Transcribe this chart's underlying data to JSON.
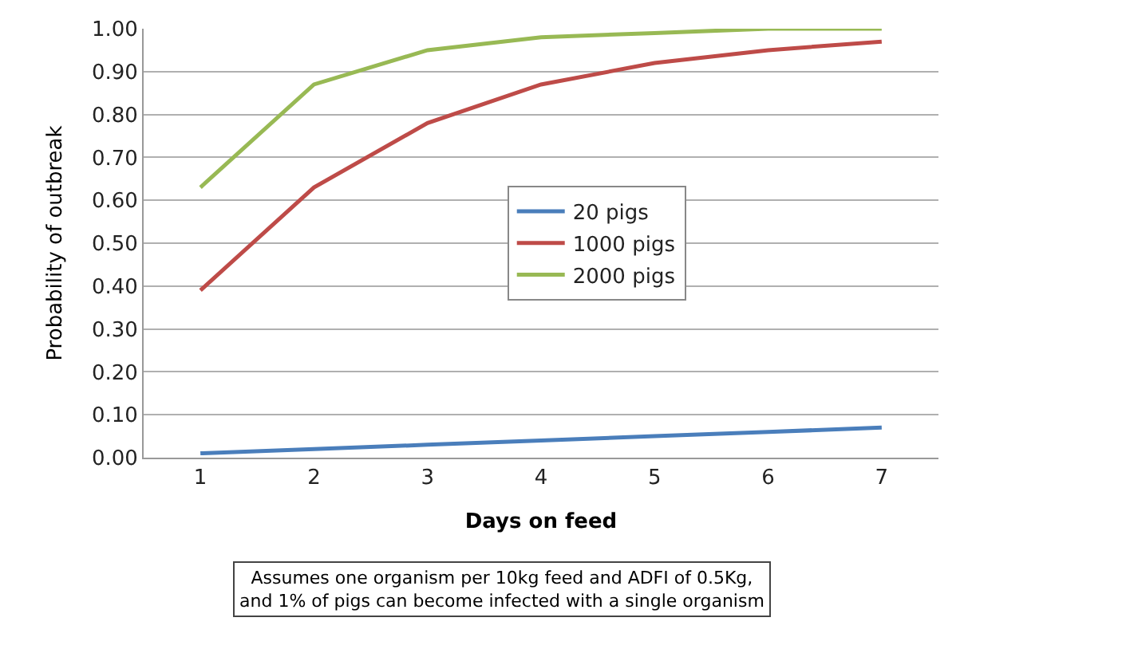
{
  "chart_data": {
    "type": "line",
    "xlabel": "Days on feed",
    "ylabel": "Probability of outbreak",
    "categories": [
      "1",
      "2",
      "3",
      "4",
      "5",
      "6",
      "7"
    ],
    "series": [
      {
        "name": "20 pigs",
        "color": "#4a7ebb",
        "values": [
          0.01,
          0.02,
          0.03,
          0.04,
          0.05,
          0.06,
          0.07
        ]
      },
      {
        "name": "1000 pigs",
        "color": "#be4b48",
        "values": [
          0.39,
          0.63,
          0.78,
          0.87,
          0.92,
          0.95,
          0.97
        ]
      },
      {
        "name": "2000 pigs",
        "color": "#98b954",
        "values": [
          0.63,
          0.87,
          0.95,
          0.98,
          0.99,
          1.0,
          1.0
        ]
      }
    ],
    "ylim": [
      0,
      1
    ],
    "yticks": [
      {
        "value": 0,
        "label": "0.00"
      },
      {
        "value": 0.1,
        "label": "0.10"
      },
      {
        "value": 0.2,
        "label": "0.20"
      },
      {
        "value": 0.3,
        "label": "0.30"
      },
      {
        "value": 0.4,
        "label": "0.40"
      },
      {
        "value": 0.5,
        "label": "0.50"
      },
      {
        "value": 0.6,
        "label": "0.60"
      },
      {
        "value": 0.7,
        "label": "0.70"
      },
      {
        "value": 0.8,
        "label": "0.80"
      },
      {
        "value": 0.9,
        "label": "0.90"
      },
      {
        "value": 1,
        "label": "1.00"
      }
    ],
    "grid": "y",
    "legend": "center",
    "marker": "none",
    "line_style": "solid",
    "annotations": [
      "Assumes one organism per 10kg feed and ADFI of 0.5Kg,\nand 1% of pigs can become infected with a single organism"
    ]
  }
}
